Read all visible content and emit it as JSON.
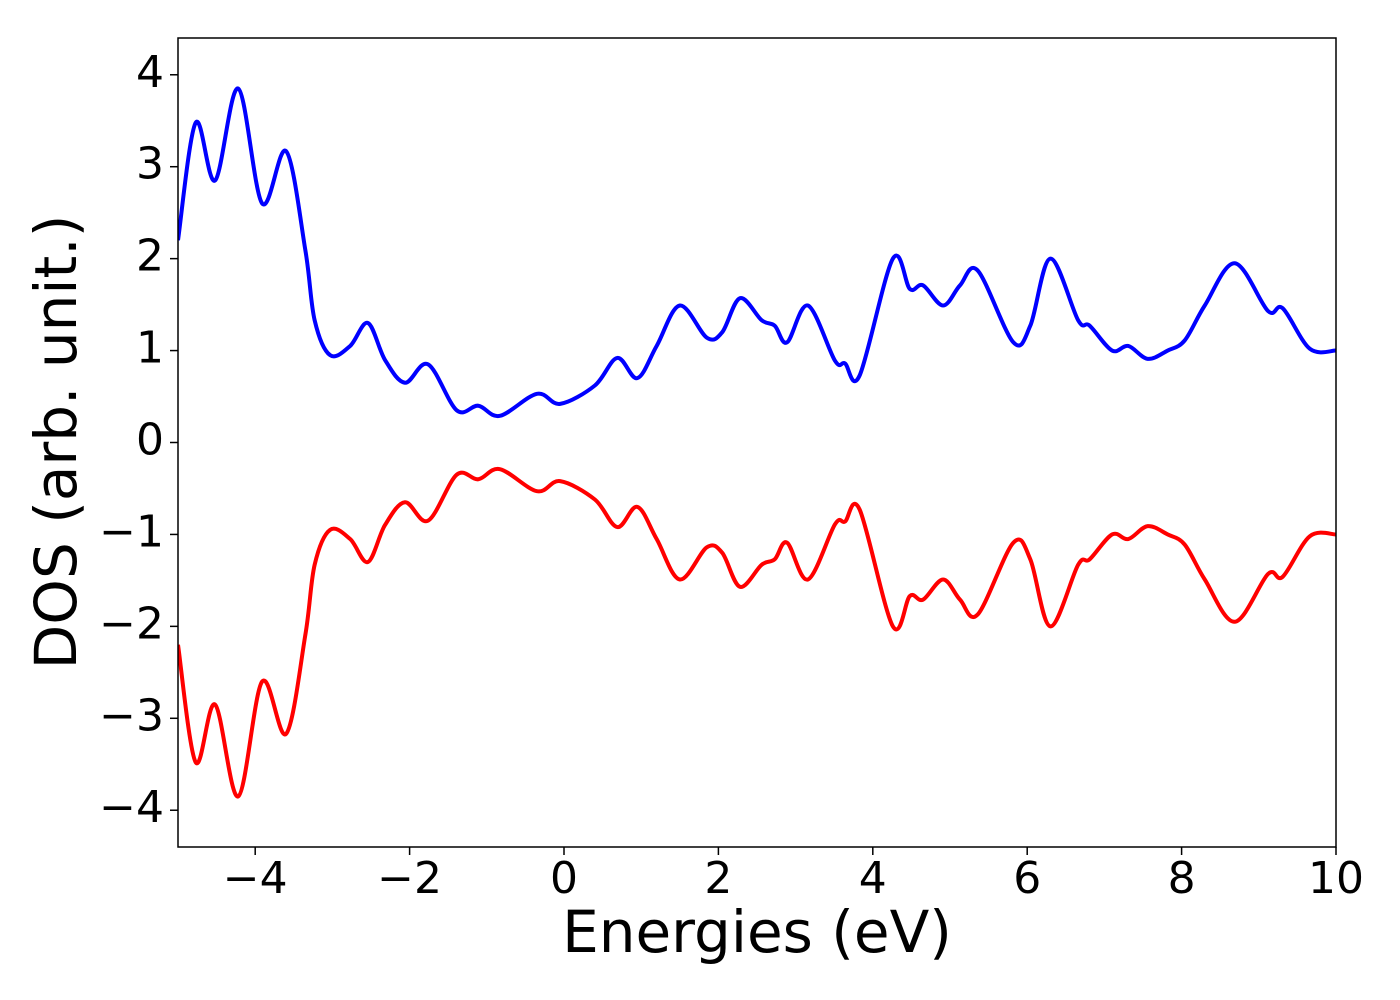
{
  "chart_data": {
    "type": "line",
    "xlabel": "Energies (eV)",
    "ylabel": "DOS (arb. unit.)",
    "x": [
      -5,
      -4.77,
      -4.52,
      -4.22,
      -3.91,
      -3.6,
      -3.35,
      -3.23,
      -3.03,
      -2.77,
      -2.54,
      -2.32,
      -2.06,
      -1.76,
      -1.39,
      -1.11,
      -0.83,
      -0.35,
      -0.05,
      0.4,
      0.69,
      0.95,
      1.2,
      1.5,
      1.85,
      2.05,
      2.28,
      2.56,
      2.73,
      2.89,
      3.16,
      3.51,
      3.64,
      3.83,
      4.26,
      4.48,
      4.65,
      4.91,
      5.13,
      5.36,
      5.82,
      6.04,
      6.3,
      6.66,
      6.81,
      7.1,
      7.31,
      7.56,
      7.82,
      8.04,
      8.3,
      8.69,
      9.12,
      9.31,
      9.66,
      10
    ],
    "series": [
      {
        "color": "#0000ff",
        "values": [
          2.2,
          3.48,
          2.85,
          3.85,
          2.6,
          3.17,
          2.09,
          1.33,
          0.95,
          1.05,
          1.3,
          0.9,
          0.65,
          0.85,
          0.35,
          0.4,
          0.29,
          0.53,
          0.42,
          0.62,
          0.92,
          0.7,
          1.05,
          1.49,
          1.14,
          1.2,
          1.57,
          1.33,
          1.27,
          1.09,
          1.49,
          0.89,
          0.86,
          0.73,
          2.0,
          1.67,
          1.71,
          1.49,
          1.71,
          1.87,
          1.09,
          1.27,
          2.0,
          1.33,
          1.27,
          1.0,
          1.05,
          0.91,
          1.0,
          1.11,
          1.49,
          1.95,
          1.43,
          1.46,
          1.02,
          1.0
        ]
      },
      {
        "color": "#ff0000",
        "values": [
          -2.2,
          -3.48,
          -2.85,
          -3.85,
          -2.6,
          -3.17,
          -2.09,
          -1.33,
          -0.95,
          -1.05,
          -1.3,
          -0.9,
          -0.65,
          -0.85,
          -0.35,
          -0.4,
          -0.29,
          -0.53,
          -0.42,
          -0.62,
          -0.92,
          -0.7,
          -1.05,
          -1.49,
          -1.14,
          -1.2,
          -1.57,
          -1.33,
          -1.27,
          -1.09,
          -1.49,
          -0.89,
          -0.86,
          -0.73,
          -2.0,
          -1.67,
          -1.71,
          -1.49,
          -1.71,
          -1.87,
          -1.09,
          -1.27,
          -2.0,
          -1.33,
          -1.27,
          -1.0,
          -1.05,
          -0.91,
          -1.0,
          -1.11,
          -1.49,
          -1.95,
          -1.43,
          -1.46,
          -1.02,
          -1.0
        ]
      }
    ],
    "xlim": [
      -5,
      10
    ],
    "ylim": [
      -4.4,
      4.4
    ],
    "xticks": [
      {
        "value": -4,
        "label": "−4"
      },
      {
        "value": -2,
        "label": "−2"
      },
      0,
      2,
      4,
      6,
      8,
      10
    ],
    "yticks": [
      {
        "value": -4,
        "label": "−4"
      },
      {
        "value": -3,
        "label": "−3"
      },
      {
        "value": -2,
        "label": "−2"
      },
      {
        "value": -1,
        "label": "−1"
      },
      0,
      1,
      2,
      3,
      4
    ]
  }
}
